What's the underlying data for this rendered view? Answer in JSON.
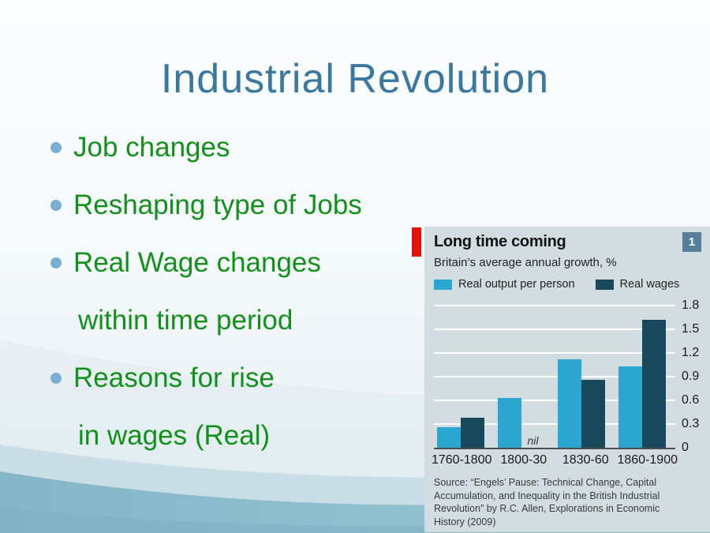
{
  "slide": {
    "title": "Industrial Revolution",
    "title_color": "#3b78a0",
    "bullet_color": "#12911a",
    "bullet_dot_color": "#7badd2",
    "list": [
      {
        "bullet": true,
        "text": "Job changes"
      },
      {
        "bullet": true,
        "text": "Reshaping type of Jobs"
      },
      {
        "bullet": true,
        "text": "Real Wage changes"
      },
      {
        "bullet": false,
        "text": "within time period"
      },
      {
        "bullet": true,
        "text": "Reasons for rise"
      },
      {
        "bullet": false,
        "text": "in wages (Real)"
      }
    ]
  },
  "chart_data": {
    "type": "bar",
    "title": "Long time coming",
    "subtitle": "Britain’s average annual growth, %",
    "figure_number": "1",
    "categories": [
      "1760-1800",
      "1800-30",
      "1830-60",
      "1860-1900"
    ],
    "series": [
      {
        "name": "Real output per person",
        "color": "#2aa6d0",
        "values": [
          0.26,
          0.63,
          1.12,
          1.03
        ]
      },
      {
        "name": "Real wages",
        "color": "#17485c",
        "values": [
          0.38,
          0,
          0.86,
          1.62
        ]
      }
    ],
    "nil_label": "nil",
    "nil_category_index": 1,
    "nil_series_index": 1,
    "ylim": [
      0,
      1.8
    ],
    "yticks": [
      0,
      0.3,
      0.6,
      0.9,
      1.2,
      1.5,
      1.8
    ],
    "grid": "white horizontal gridlines on light grey panel",
    "legend_position": "top",
    "panel_color": "#d3dde1",
    "accent_red": "#e3120b",
    "figure_box_color": "#56809a",
    "source_lines": [
      "Source: “Engels’ Pause: Technical Change, Capital",
      "Accumulation, and Inequality in the British Industrial",
      "Revolution” by R.C. Allen, Explorations in Economic",
      "History (2009)"
    ]
  }
}
